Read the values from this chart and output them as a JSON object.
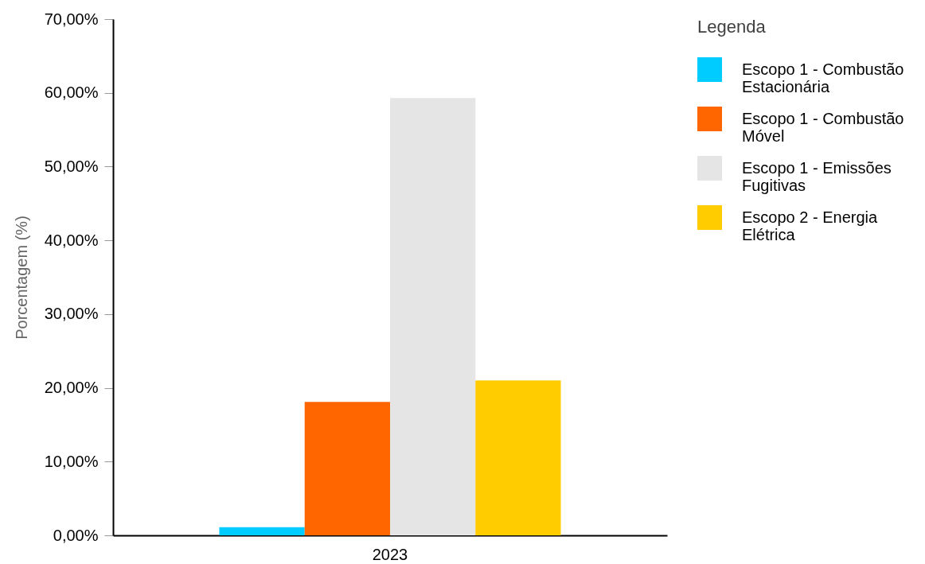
{
  "chart_data": {
    "type": "bar",
    "categories": [
      "2023"
    ],
    "ylabel": "Porcentagem (%)",
    "legend_title": "Legenda",
    "series": [
      {
        "name": "Escopo 1 - Combustão Estacionária",
        "color": "#00ccff",
        "values": [
          1.1
        ]
      },
      {
        "name": "Escopo 1 - Combustão Móvel",
        "color": "#ff6600",
        "values": [
          18.1
        ]
      },
      {
        "name": "Escopo 1 - Emissões Fugitivas",
        "color": "#e5e5e5",
        "values": [
          59.3
        ]
      },
      {
        "name": "Escopo 2 - Energia Elétrica",
        "color": "#ffcc00",
        "values": [
          21.0
        ]
      }
    ],
    "ylim": [
      0,
      70
    ],
    "yticks": [
      {
        "value": 0,
        "label": "0,00%"
      },
      {
        "value": 10,
        "label": "10,00%"
      },
      {
        "value": 20,
        "label": "20,00%"
      },
      {
        "value": 30,
        "label": "30,00%"
      },
      {
        "value": 40,
        "label": "40,00%"
      },
      {
        "value": 50,
        "label": "50,00%"
      },
      {
        "value": 60,
        "label": "60,00%"
      },
      {
        "value": 70,
        "label": "70,00%"
      }
    ],
    "grid": false,
    "legend": "right"
  }
}
